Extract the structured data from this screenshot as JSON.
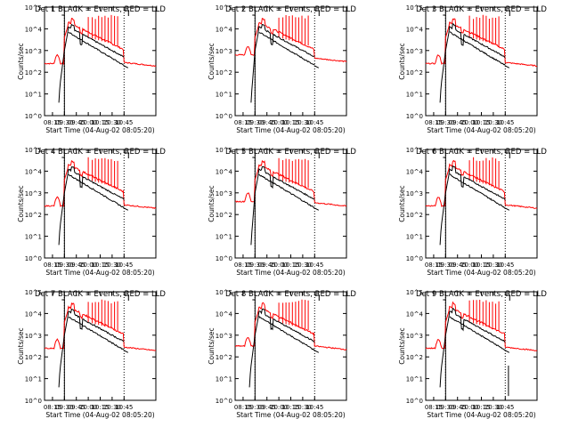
{
  "panel_titles": [
    "Det 1 BLACK = Events, RED = LLD",
    "Det 2 BLACK = Events, RED = LLD",
    "Det 3 BLACK = Events, RED = LLD",
    "Det 4 BLACK = Events, RED = LLD",
    "Det 5 BLACK = Events, RED = LLD",
    "Det 6 BLACK = Events, RED = LLD",
    "Det 7 BLACK = Events, RED = LLD",
    "Det 8 BLACK = Events, RED = LLD",
    "Det 9 BLACK = Events, RED = LLD"
  ],
  "colors": {
    "events": "#000000",
    "lld": "#ff0000"
  },
  "chart_data": {
    "type": "line",
    "layout": "3x3 grid",
    "xlabel": "Start Time (04-Aug-02 08:05:20)",
    "ylabel": "Counts/sec",
    "xticks": [
      "08:15",
      "09:30",
      "09:45",
      "10:00",
      "10:15",
      "10:30",
      "10:45"
    ],
    "yticks": [
      "10^0",
      "10^1",
      "10^2",
      "10^3",
      "10^4",
      "10^5"
    ],
    "yscale": "log",
    "ylim": [
      1,
      100000
    ],
    "vertical_markers_minutes": [
      25,
      100
    ],
    "series": [
      {
        "name": "BLACK = Events",
        "color": "#000000"
      },
      {
        "name": "RED = LLD",
        "color": "#ff0000"
      }
    ]
  }
}
